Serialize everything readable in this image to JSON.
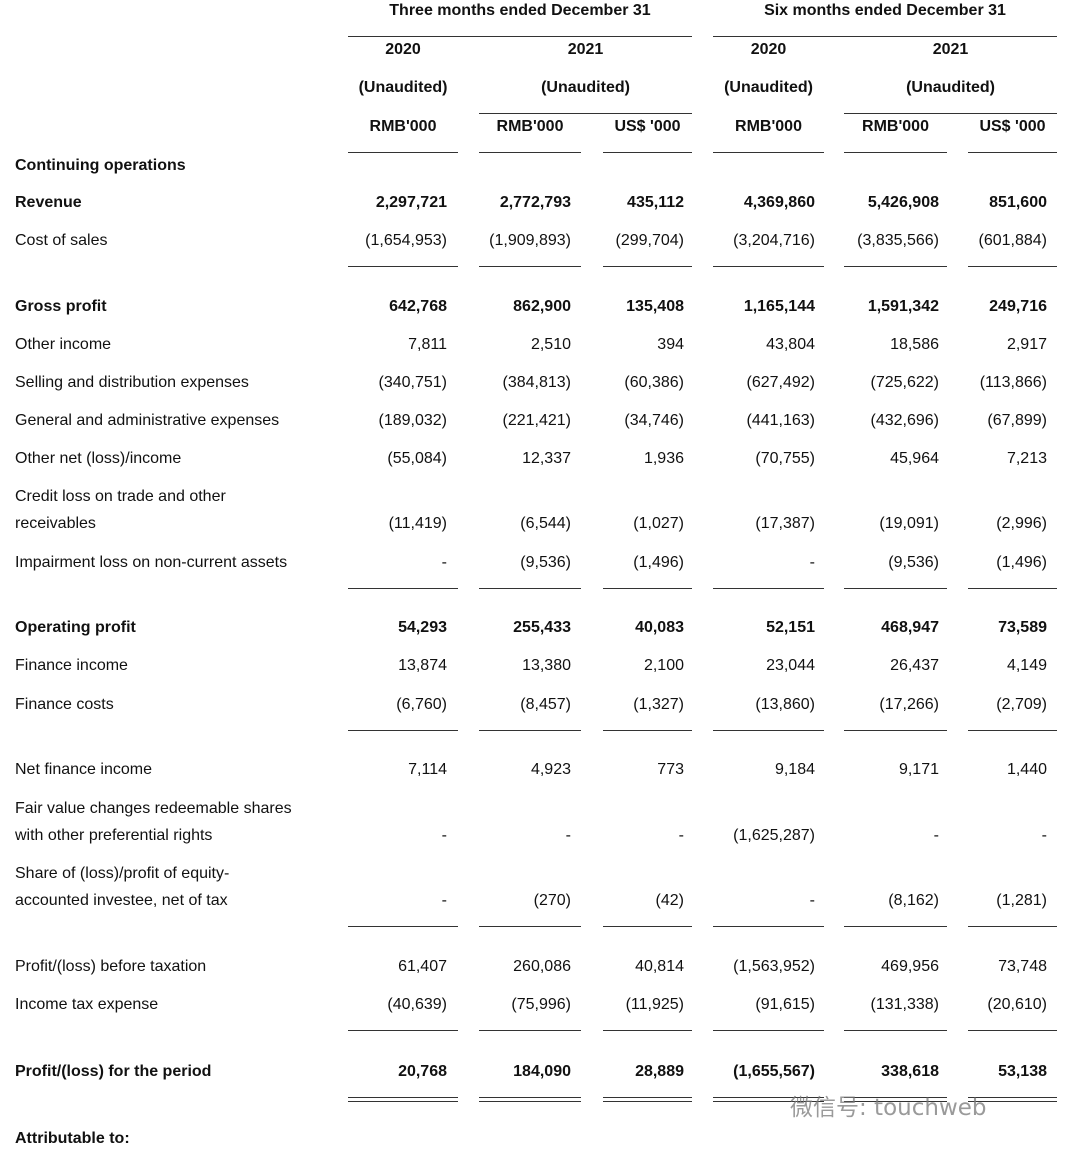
{
  "table": {
    "groups": [
      "Three months ended December 31",
      "Six months ended December 31"
    ],
    "years": [
      "2020",
      "2021",
      "2020",
      "2021"
    ],
    "audit": [
      "(Unaudited)",
      "(Unaudited)",
      "(Unaudited)",
      "(Unaudited)"
    ],
    "units": [
      "RMB'000",
      "RMB'000",
      "US$ '000",
      "RMB'000",
      "RMB'000",
      "US$ '000"
    ],
    "rows": [
      {
        "label": [
          "Continuing operations"
        ],
        "bold": true,
        "values": []
      },
      {
        "label": [
          "Revenue"
        ],
        "bold": true,
        "values": [
          "2,297,721",
          "2,772,793",
          "435,112",
          "4,369,860",
          "5,426,908",
          "851,600"
        ]
      },
      {
        "label": [
          "Cost of sales"
        ],
        "bold": false,
        "values": [
          "(1,654,953)",
          "(1,909,893)",
          "(299,704)",
          "(3,204,716)",
          "(3,835,566)",
          "(601,884)"
        ]
      },
      {
        "label": [
          "Gross profit"
        ],
        "bold": true,
        "values": [
          "642,768",
          "862,900",
          "135,408",
          "1,165,144",
          "1,591,342",
          "249,716"
        ]
      },
      {
        "label": [
          "Other income"
        ],
        "bold": false,
        "values": [
          "7,811",
          "2,510",
          "394",
          "43,804",
          "18,586",
          "2,917"
        ]
      },
      {
        "label": [
          "Selling and distribution expenses"
        ],
        "bold": false,
        "values": [
          "(340,751)",
          "(384,813)",
          "(60,386)",
          "(627,492)",
          "(725,622)",
          "(113,866)"
        ]
      },
      {
        "label": [
          "General and administrative expenses"
        ],
        "bold": false,
        "values": [
          "(189,032)",
          "(221,421)",
          "(34,746)",
          "(441,163)",
          "(432,696)",
          "(67,899)"
        ]
      },
      {
        "label": [
          "Other net (loss)/income"
        ],
        "bold": false,
        "values": [
          "(55,084)",
          "12,337",
          "1,936",
          "(70,755)",
          "45,964",
          "7,213"
        ]
      },
      {
        "label": [
          "Credit loss on trade and other",
          "receivables"
        ],
        "bold": false,
        "values": [
          "(11,419)",
          "(6,544)",
          "(1,027)",
          "(17,387)",
          "(19,091)",
          "(2,996)"
        ]
      },
      {
        "label": [
          "Impairment loss on non-current assets"
        ],
        "bold": false,
        "values": [
          "-",
          "(9,536)",
          "(1,496)",
          "-",
          "(9,536)",
          "(1,496)"
        ]
      },
      {
        "label": [
          "Operating profit"
        ],
        "bold": true,
        "values": [
          "54,293",
          "255,433",
          "40,083",
          "52,151",
          "468,947",
          "73,589"
        ]
      },
      {
        "label": [
          "Finance income"
        ],
        "bold": false,
        "values": [
          "13,874",
          "13,380",
          "2,100",
          "23,044",
          "26,437",
          "4,149"
        ]
      },
      {
        "label": [
          "Finance costs"
        ],
        "bold": false,
        "values": [
          "(6,760)",
          "(8,457)",
          "(1,327)",
          "(13,860)",
          "(17,266)",
          "(2,709)"
        ]
      },
      {
        "label": [
          "Net finance income"
        ],
        "bold": false,
        "values": [
          "7,114",
          "4,923",
          "773",
          "9,184",
          "9,171",
          "1,440"
        ]
      },
      {
        "label": [
          "Fair value changes redeemable shares",
          "with other preferential rights"
        ],
        "bold": false,
        "values": [
          "-",
          "-",
          "-",
          "(1,625,287)",
          "-",
          "-"
        ]
      },
      {
        "label": [
          "Share of (loss)/profit of equity-",
          "accounted investee, net of tax"
        ],
        "bold": false,
        "values": [
          "-",
          "(270)",
          "(42)",
          "-",
          "(8,162)",
          "(1,281)"
        ]
      },
      {
        "label": [
          "Profit/(loss) before taxation"
        ],
        "bold": false,
        "values": [
          "61,407",
          "260,086",
          "40,814",
          "(1,563,952)",
          "469,956",
          "73,748"
        ]
      },
      {
        "label": [
          "Income tax expense"
        ],
        "bold": false,
        "values": [
          "(40,639)",
          "(75,996)",
          "(11,925)",
          "(91,615)",
          "(131,338)",
          "(20,610)"
        ]
      },
      {
        "label": [
          "Profit/(loss) for the period"
        ],
        "bold": true,
        "values": [
          "20,768",
          "184,090",
          "28,889",
          "(1,655,567)",
          "338,618",
          "53,138"
        ]
      },
      {
        "label": [
          "Attributable to:"
        ],
        "bold": true,
        "values": []
      }
    ],
    "watermark": "微信号: touchweb"
  }
}
